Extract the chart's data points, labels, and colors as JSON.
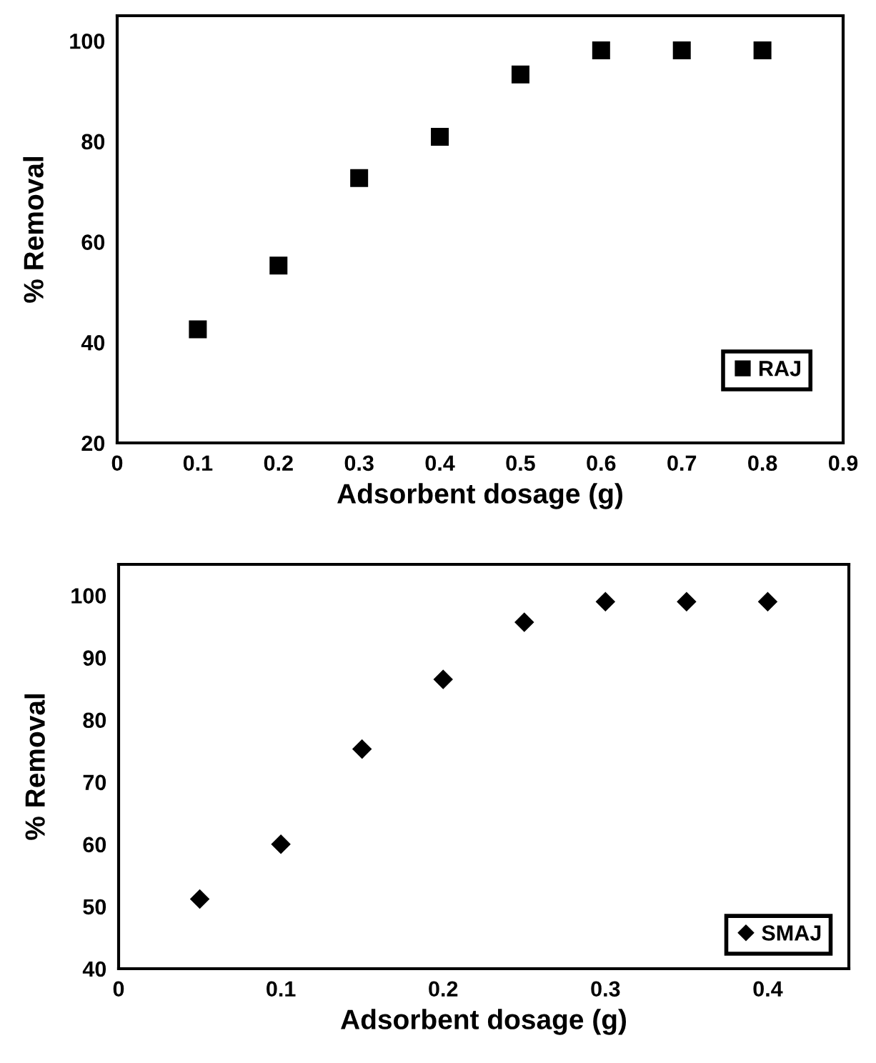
{
  "chart_data": [
    {
      "type": "scatter",
      "xlabel": "Adsorbent dosage (g)",
      "ylabel": "% Removal",
      "x": [
        0.1,
        0.2,
        0.3,
        0.4,
        0.5,
        0.6,
        0.7,
        0.8
      ],
      "series": [
        {
          "name": "RAJ",
          "color": "#000000",
          "marker": "square",
          "values": [
            42.6,
            55.3,
            72.7,
            80.9,
            93.3,
            98.1,
            98.1,
            98.1
          ]
        }
      ],
      "xlim": [
        0,
        0.9
      ],
      "xticks": [
        0,
        0.1,
        0.2,
        0.3,
        0.4,
        0.5,
        0.6,
        0.7,
        0.8,
        0.9
      ],
      "ylim": [
        20,
        105
      ],
      "yticks": [
        20,
        40,
        60,
        80,
        100
      ],
      "grid": false,
      "legend": "bottom right"
    },
    {
      "type": "scatter",
      "xlabel": "Adsorbent dosage (g)",
      "ylabel": "% Removal",
      "x": [
        0.05,
        0.1,
        0.15,
        0.2,
        0.25,
        0.3,
        0.35,
        0.4
      ],
      "series": [
        {
          "name": "SMAJ",
          "color": "#000000",
          "marker": "diamond",
          "values": [
            51.2,
            60.0,
            75.3,
            86.5,
            95.7,
            99.0,
            99.0,
            99.0
          ]
        }
      ],
      "xlim": [
        0,
        0.45
      ],
      "xticks": [
        0,
        0.1,
        0.2,
        0.3,
        0.4
      ],
      "ylim": [
        40,
        105
      ],
      "yticks": [
        40,
        50,
        60,
        70,
        80,
        90,
        100
      ],
      "grid": false,
      "legend": "bottom right"
    }
  ]
}
